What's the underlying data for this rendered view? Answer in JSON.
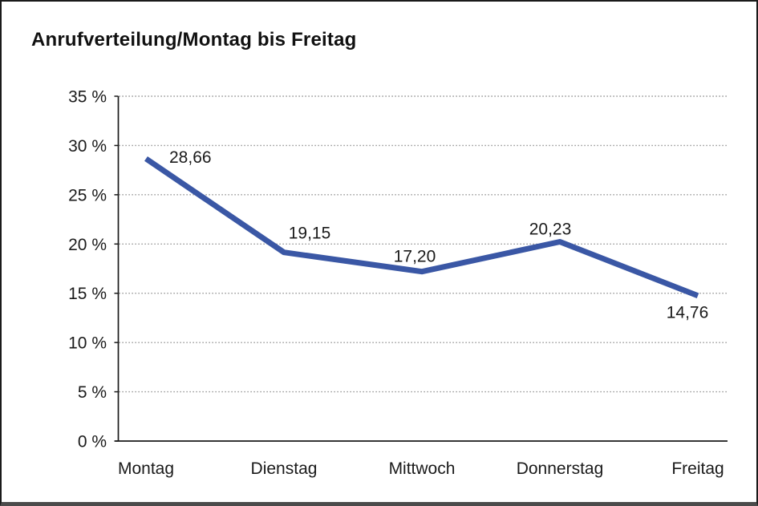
{
  "window": {
    "background": "#ffffff",
    "border_color": "#1a1a1a",
    "bottom_border_color": "#4b4b4b"
  },
  "chart_data": {
    "type": "line",
    "title": "Anrufverteilung/Montag bis Freitag",
    "categories": [
      "Montag",
      "Dienstag",
      "Mittwoch",
      "Donnerstag",
      "Freitag"
    ],
    "series": [
      {
        "name": "Anrufverteilung",
        "values": [
          28.66,
          19.15,
          17.2,
          20.23,
          14.76
        ]
      }
    ],
    "value_labels": [
      "28,66",
      "19,15",
      "17,20",
      "20,23",
      "14,76"
    ],
    "y_axis": {
      "tick_labels": [
        "0 %",
        "5 %",
        "10 %",
        "15 %",
        "20 %",
        "25 %",
        "30 %",
        "35 %"
      ],
      "min": 0,
      "max": 35,
      "step": 5,
      "unit": "%"
    },
    "x_axis": {
      "label": "",
      "type": "category"
    },
    "grid": {
      "horizontal": "dotted",
      "vertical": "none",
      "color": "#7a7a7a"
    },
    "legend": "none",
    "line_color": "#3A57A5",
    "axis_color": "#1a1a1a",
    "text_color": "#1a1a1a"
  }
}
